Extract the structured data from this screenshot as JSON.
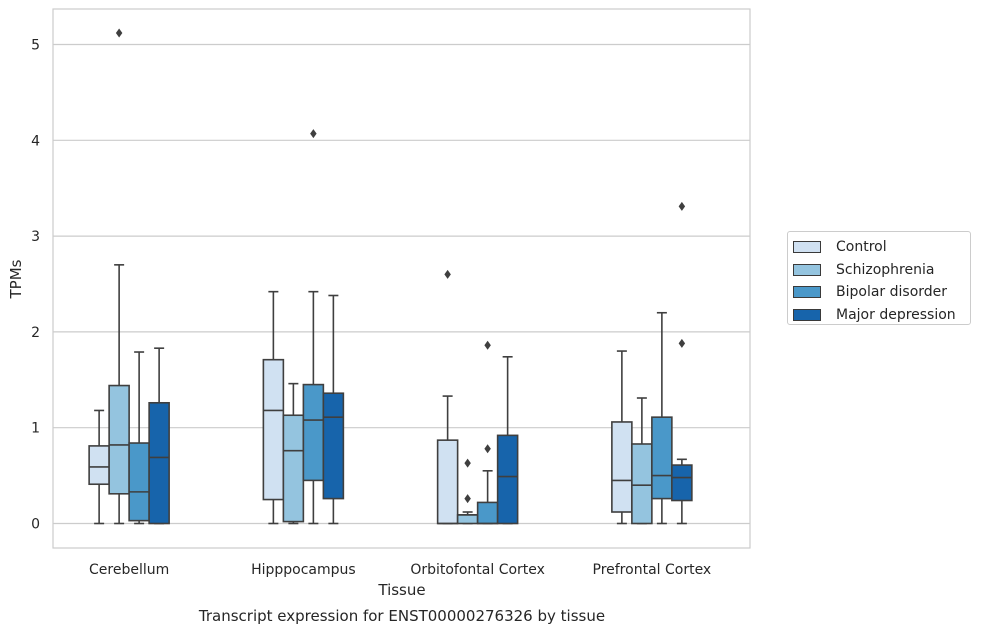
{
  "chart_data": {
    "type": "box",
    "title": "Transcript expression for ENST00000276326 by tissue",
    "xlabel": "Tissue",
    "ylabel": "TPMs",
    "ylim": [
      -0.25,
      5.38
    ],
    "yticks": [
      0,
      1,
      2,
      3,
      4,
      5
    ],
    "grid": "horizontal",
    "legend_position": "right",
    "categories": [
      "Cerebellum",
      "Hipppocampus",
      "Orbitofontal Cortex",
      "Prefrontal Cortex"
    ],
    "series": [
      {
        "name": "Control",
        "color": "#d0e1f2",
        "boxes": [
          {
            "whislo": 0.0,
            "q1": 0.41,
            "med": 0.59,
            "q3": 0.81,
            "whishi": 1.18,
            "fliers": []
          },
          {
            "whislo": 0.0,
            "q1": 0.25,
            "med": 1.18,
            "q3": 1.71,
            "whishi": 2.42,
            "fliers": []
          },
          {
            "whislo": 0.0,
            "q1": 0.0,
            "med": 0.0,
            "q3": 0.87,
            "whishi": 1.33,
            "fliers": [
              2.6
            ]
          },
          {
            "whislo": 0.0,
            "q1": 0.12,
            "med": 0.45,
            "q3": 1.06,
            "whishi": 1.8,
            "fliers": []
          }
        ]
      },
      {
        "name": "Schizophrenia",
        "color": "#94c4df",
        "boxes": [
          {
            "whislo": 0.0,
            "q1": 0.31,
            "med": 0.82,
            "q3": 1.44,
            "whishi": 2.7,
            "fliers": [
              5.12
            ]
          },
          {
            "whislo": 0.0,
            "q1": 0.02,
            "med": 0.76,
            "q3": 1.13,
            "whishi": 1.46,
            "fliers": []
          },
          {
            "whislo": 0.0,
            "q1": 0.0,
            "med": 0.09,
            "q3": 0.09,
            "whishi": 0.12,
            "fliers": [
              0.26,
              0.63
            ]
          },
          {
            "whislo": 0.0,
            "q1": 0.0,
            "med": 0.4,
            "q3": 0.83,
            "whishi": 1.31,
            "fliers": []
          }
        ]
      },
      {
        "name": "Bipolar disorder",
        "color": "#4a98c9",
        "boxes": [
          {
            "whislo": 0.0,
            "q1": 0.03,
            "med": 0.33,
            "q3": 0.84,
            "whishi": 1.79,
            "fliers": []
          },
          {
            "whislo": 0.0,
            "q1": 0.45,
            "med": 1.08,
            "q3": 1.45,
            "whishi": 2.42,
            "fliers": [
              4.07
            ]
          },
          {
            "whislo": 0.0,
            "q1": 0.0,
            "med": 0.0,
            "q3": 0.22,
            "whishi": 0.55,
            "fliers": [
              0.78,
              1.86
            ]
          },
          {
            "whislo": 0.0,
            "q1": 0.26,
            "med": 0.5,
            "q3": 1.11,
            "whishi": 2.2,
            "fliers": []
          }
        ]
      },
      {
        "name": "Major depression",
        "color": "#1764ab",
        "boxes": [
          {
            "whislo": 0.0,
            "q1": 0.0,
            "med": 0.69,
            "q3": 1.26,
            "whishi": 1.83,
            "fliers": []
          },
          {
            "whislo": 0.0,
            "q1": 0.26,
            "med": 1.11,
            "q3": 1.36,
            "whishi": 2.38,
            "fliers": []
          },
          {
            "whislo": 0.0,
            "q1": 0.0,
            "med": 0.49,
            "q3": 0.92,
            "whishi": 1.74,
            "fliers": []
          },
          {
            "whislo": 0.0,
            "q1": 0.24,
            "med": 0.48,
            "q3": 0.61,
            "whishi": 0.67,
            "fliers": [
              1.88,
              3.31
            ]
          }
        ]
      }
    ]
  }
}
